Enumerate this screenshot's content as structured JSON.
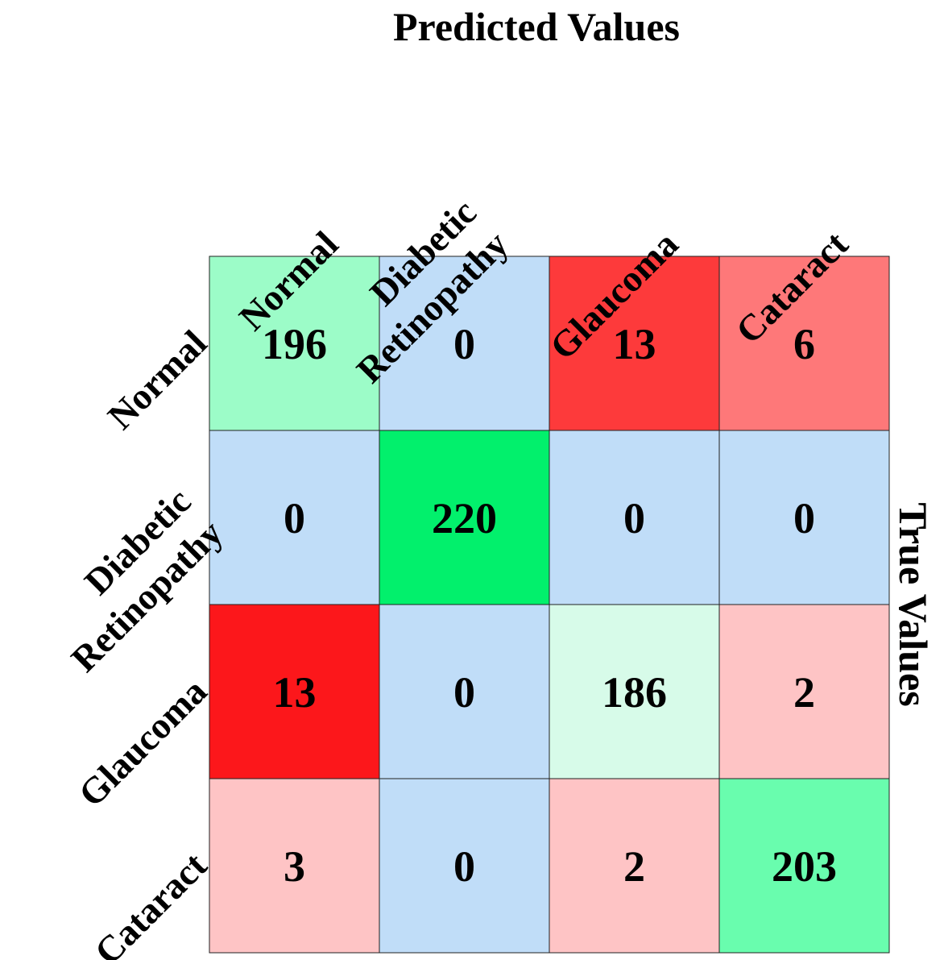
{
  "chart_data": {
    "type": "heatmap",
    "title": "",
    "xlabel": "Predicted Values",
    "ylabel": "True Values",
    "x_categories": [
      [
        "Normal"
      ],
      [
        "Diabetic",
        "Retinopathy"
      ],
      [
        "Glaucoma"
      ],
      [
        "Cataract"
      ]
    ],
    "y_categories": [
      [
        "Normal"
      ],
      [
        "Diabetic",
        "Retinopathy"
      ],
      [
        "Glaucoma"
      ],
      [
        "Cataract"
      ]
    ],
    "values": [
      [
        196,
        0,
        13,
        6
      ],
      [
        0,
        220,
        0,
        0
      ],
      [
        13,
        0,
        186,
        2
      ],
      [
        3,
        0,
        2,
        203
      ]
    ],
    "colors": [
      [
        "#9cfcc8",
        "#c0ddf8",
        "#fd3a3b",
        "#fe7879"
      ],
      [
        "#c0ddf8",
        "#02f06c",
        "#c0ddf8",
        "#c0ddf8"
      ],
      [
        "#fc171b",
        "#c0ddf8",
        "#d7fbe9",
        "#fec4c5"
      ],
      [
        "#fec4c5",
        "#c0ddf8",
        "#fec4c5",
        "#69fdae"
      ]
    ],
    "grid": true,
    "legend": "none"
  }
}
